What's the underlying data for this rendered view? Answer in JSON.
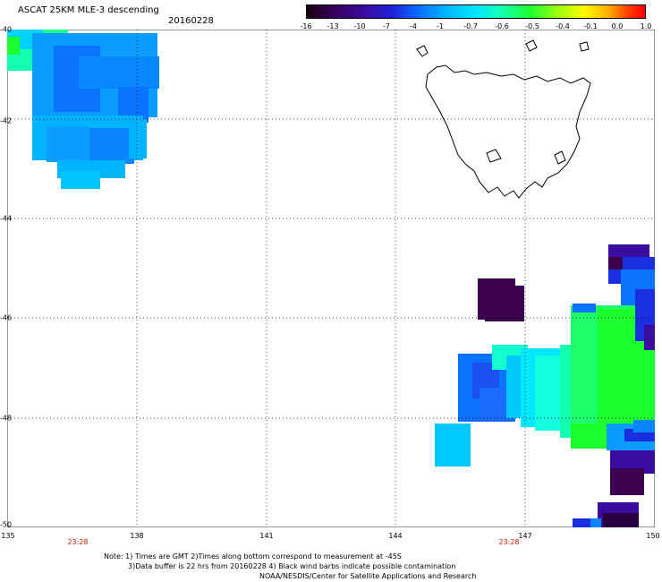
{
  "header": {
    "title": "ASCAT 25KM MLE-3 descending",
    "date": "20160228"
  },
  "colorbar": {
    "labels": [
      "-16",
      "-13",
      "-10",
      "-7",
      "-4",
      "-1",
      "-0.7",
      "-0.6",
      "-0.5",
      "-0.4",
      "-0.1",
      "0.0",
      "1.0"
    ]
  },
  "axes": {
    "lat_labels": [
      "-40",
      "-42",
      "-44",
      "-46",
      "-48",
      "-50"
    ],
    "lon_labels": [
      "135",
      "138",
      "141",
      "144",
      "147",
      "150"
    ],
    "times": [
      "23:28",
      "23:28"
    ]
  },
  "notes": {
    "line1": "Note: 1) Times are GMT 2)Times along bottom correspond to measurement at -45S",
    "line2": "3)Data buffer is 22 hrs from 20160228 4) Black wind barbs indicate possible contamination",
    "line3": "NOAA/NESDIS/Center for Satellite Applications and Research"
  },
  "colors": {
    "cyan": "#00c8ff",
    "blue": "#0a74ff",
    "deep_blue": "#1a30e0",
    "violet": "#3a0ca0",
    "dark_purple": "#3b0050",
    "green": "#1cff2e",
    "aqua": "#14ffd0"
  }
}
